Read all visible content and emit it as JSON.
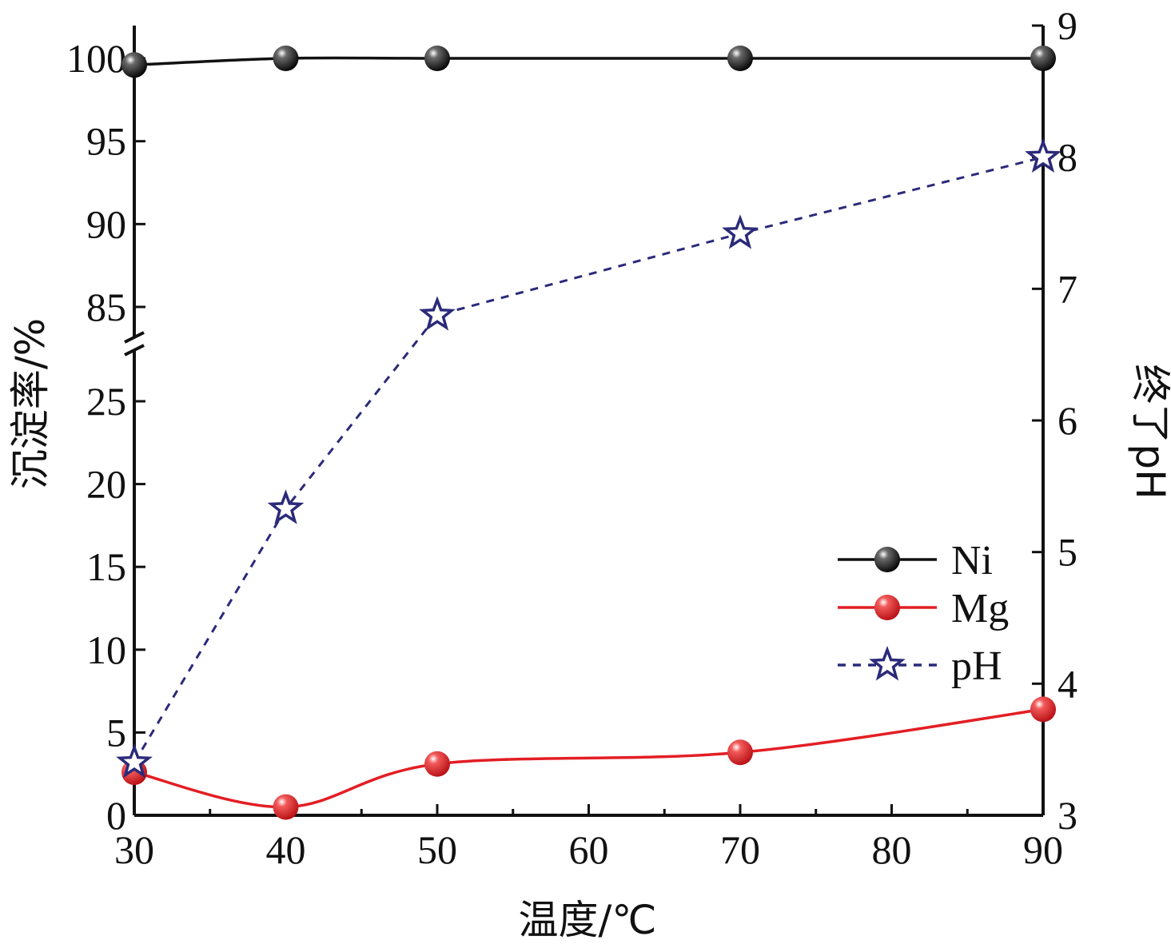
{
  "chart_data": {
    "type": "line",
    "title": "",
    "xlabel": "温度/℃",
    "ylabel_left": "沉淀率/%",
    "ylabel_right": "终了pH",
    "x_ticks": [
      30,
      40,
      50,
      60,
      70,
      80,
      90
    ],
    "xlim": [
      30,
      90
    ],
    "y_left_ticks_lower": [
      0,
      5,
      10,
      15,
      20,
      25
    ],
    "y_left_ticks_upper": [
      85,
      90,
      95,
      100
    ],
    "y_left_axis_break": [
      27,
      83
    ],
    "y_right_ticks": [
      3,
      4,
      5,
      6,
      7,
      8,
      9
    ],
    "y_right_lim": [
      3,
      9
    ],
    "legend_position": "center-right",
    "grid": false,
    "series": [
      {
        "name": "Ni",
        "axis": "left",
        "color": "#111111",
        "line_style": "solid",
        "marker": "sphere",
        "x": [
          30,
          40,
          50,
          70,
          90
        ],
        "y": [
          99.6,
          100.0,
          100.0,
          100.0,
          100.0
        ]
      },
      {
        "name": "Mg",
        "axis": "left",
        "color": "#e31e24",
        "line_style": "solid",
        "marker": "sphere",
        "x": [
          30,
          40,
          50,
          70,
          90
        ],
        "y": [
          2.6,
          0.5,
          3.1,
          3.8,
          6.4
        ]
      },
      {
        "name": "pH",
        "axis": "right",
        "color": "#2b2a7a",
        "line_style": "dashed",
        "marker": "star",
        "x": [
          30,
          40,
          50,
          70,
          90
        ],
        "y": [
          3.4,
          5.33,
          6.8,
          7.42,
          8.0
        ]
      }
    ]
  }
}
